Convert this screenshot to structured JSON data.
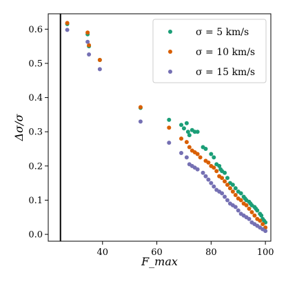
{
  "chart_data": {
    "type": "scatter",
    "title": "",
    "xlabel": "F_max",
    "ylabel": "Δσ/σ",
    "xlim": [
      20,
      102
    ],
    "ylim": [
      -0.02,
      0.645
    ],
    "xticks": [
      40,
      60,
      80,
      100
    ],
    "yticks": [
      0.0,
      0.1,
      0.2,
      0.3,
      0.4,
      0.5,
      0.6
    ],
    "xtick_labels": [
      "40",
      "60",
      "80",
      "100"
    ],
    "ytick_labels": [
      "0.0",
      "0.1",
      "0.2",
      "0.3",
      "0.4",
      "0.5",
      "0.6"
    ],
    "vline_x": 24.5,
    "grid": false,
    "legend_position": "top-right",
    "series": [
      {
        "name": "σ = 5 km/s",
        "color": "#1b9e77",
        "points": [
          [
            27,
            0.615
          ],
          [
            34.5,
            0.585
          ],
          [
            35,
            0.55
          ],
          [
            39,
            0.51
          ],
          [
            54,
            0.37
          ],
          [
            64.5,
            0.335
          ],
          [
            69,
            0.32
          ],
          [
            70,
            0.31
          ],
          [
            71,
            0.325
          ],
          [
            71.5,
            0.3
          ],
          [
            72,
            0.29
          ],
          [
            73,
            0.305
          ],
          [
            74,
            0.3
          ],
          [
            75,
            0.3
          ],
          [
            77,
            0.255
          ],
          [
            78,
            0.25
          ],
          [
            80,
            0.235
          ],
          [
            81,
            0.225
          ],
          [
            82,
            0.205
          ],
          [
            83,
            0.2
          ],
          [
            83.5,
            0.19
          ],
          [
            84,
            0.185
          ],
          [
            85,
            0.18
          ],
          [
            86,
            0.165
          ],
          [
            87,
            0.15
          ],
          [
            88,
            0.145
          ],
          [
            89,
            0.135
          ],
          [
            90,
            0.125
          ],
          [
            91,
            0.12
          ],
          [
            92,
            0.11
          ],
          [
            92.5,
            0.105
          ],
          [
            93,
            0.1
          ],
          [
            94,
            0.095
          ],
          [
            94.5,
            0.09
          ],
          [
            95,
            0.085
          ],
          [
            96,
            0.08
          ],
          [
            96.5,
            0.075
          ],
          [
            97,
            0.07
          ],
          [
            98,
            0.06
          ],
          [
            98.5,
            0.055
          ],
          [
            99,
            0.045
          ],
          [
            99.5,
            0.04
          ],
          [
            100,
            0.035
          ]
        ]
      },
      {
        "name": "σ = 10 km/s",
        "color": "#d95f02",
        "points": [
          [
            27,
            0.618
          ],
          [
            34.5,
            0.59
          ],
          [
            35,
            0.553
          ],
          [
            39,
            0.51
          ],
          [
            54,
            0.372
          ],
          [
            64.5,
            0.312
          ],
          [
            69,
            0.28
          ],
          [
            71,
            0.27
          ],
          [
            72,
            0.255
          ],
          [
            73,
            0.245
          ],
          [
            74,
            0.24
          ],
          [
            75,
            0.235
          ],
          [
            76,
            0.225
          ],
          [
            78,
            0.215
          ],
          [
            79,
            0.21
          ],
          [
            80,
            0.2
          ],
          [
            81,
            0.195
          ],
          [
            82,
            0.185
          ],
          [
            83,
            0.17
          ],
          [
            84,
            0.165
          ],
          [
            85,
            0.155
          ],
          [
            86,
            0.145
          ],
          [
            87,
            0.135
          ],
          [
            88,
            0.125
          ],
          [
            89,
            0.115
          ],
          [
            90,
            0.105
          ],
          [
            91,
            0.1
          ],
          [
            92,
            0.09
          ],
          [
            93,
            0.085
          ],
          [
            94,
            0.075
          ],
          [
            95,
            0.065
          ],
          [
            96,
            0.055
          ],
          [
            97,
            0.045
          ],
          [
            98,
            0.04
          ],
          [
            99,
            0.03
          ],
          [
            100,
            0.02
          ]
        ]
      },
      {
        "name": "σ = 15 km/s",
        "color": "#7570b3",
        "points": [
          [
            27,
            0.598
          ],
          [
            34.5,
            0.563
          ],
          [
            35,
            0.526
          ],
          [
            39,
            0.483
          ],
          [
            54,
            0.33
          ],
          [
            64.5,
            0.268
          ],
          [
            69,
            0.238
          ],
          [
            71,
            0.225
          ],
          [
            72,
            0.205
          ],
          [
            73,
            0.2
          ],
          [
            74,
            0.195
          ],
          [
            75,
            0.19
          ],
          [
            77,
            0.18
          ],
          [
            78,
            0.17
          ],
          [
            79,
            0.16
          ],
          [
            80,
            0.15
          ],
          [
            81,
            0.14
          ],
          [
            82,
            0.13
          ],
          [
            83,
            0.125
          ],
          [
            84,
            0.12
          ],
          [
            85,
            0.11
          ],
          [
            86,
            0.1
          ],
          [
            87,
            0.09
          ],
          [
            88,
            0.085
          ],
          [
            89,
            0.08
          ],
          [
            90,
            0.07
          ],
          [
            91,
            0.06
          ],
          [
            92,
            0.055
          ],
          [
            93,
            0.05
          ],
          [
            94,
            0.045
          ],
          [
            95,
            0.035
          ],
          [
            96,
            0.03
          ],
          [
            97,
            0.025
          ],
          [
            98,
            0.02
          ],
          [
            99,
            0.015
          ],
          [
            100,
            0.01
          ]
        ]
      }
    ]
  }
}
